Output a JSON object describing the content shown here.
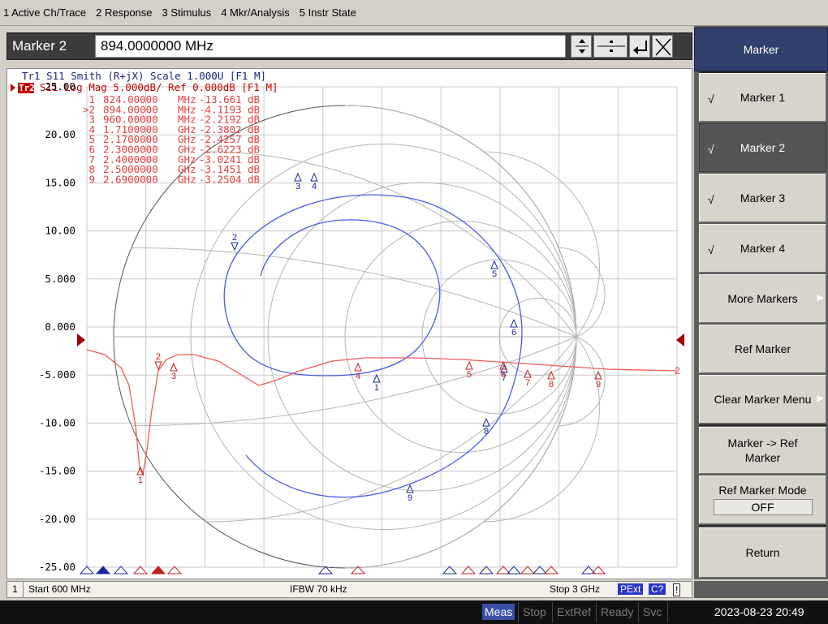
{
  "menu": [
    "1 Active Ch/Trace",
    "2 Response",
    "3 Stimulus",
    "4 Mkr/Analysis",
    "5 Instr State"
  ],
  "entry": {
    "label": "Marker 2",
    "value": "894.0000000 MHz"
  },
  "traces": {
    "tr1": "Tr1 S11 Smith (R+jX) Scale 1.000U [F1 M]",
    "tr2_tag": "Tr2",
    "tr2": "S11 Log Mag 5.000dB/ Ref 0.000dB [F1 M]"
  },
  "yaxis": [
    "25.00",
    "20.00",
    "15.00",
    "10.00",
    "5.000",
    "0.000",
    "-5.000",
    "-10.00",
    "-15.00",
    "-20.00",
    "-25.00"
  ],
  "yaxis_range": [
    -25,
    25
  ],
  "marker_table": [
    {
      "id": "1",
      "freq": "824.00000",
      "unit": "MHz",
      "val": "-13.661",
      "u": "dB"
    },
    {
      "id": ">2",
      "freq": "894.00000",
      "unit": "MHz",
      "val": "-4.1193",
      "u": "dB"
    },
    {
      "id": "3",
      "freq": "960.00000",
      "unit": "MHz",
      "val": "-2.2192",
      "u": "dB"
    },
    {
      "id": "4",
      "freq": "1.7100000",
      "unit": "GHz",
      "val": "-2.3802",
      "u": "dB"
    },
    {
      "id": "5",
      "freq": "2.1700000",
      "unit": "GHz",
      "val": "-2.4257",
      "u": "dB"
    },
    {
      "id": "6",
      "freq": "2.3000000",
      "unit": "GHz",
      "val": "-2.6223",
      "u": "dB"
    },
    {
      "id": "7",
      "freq": "2.4000000",
      "unit": "GHz",
      "val": "-3.0241",
      "u": "dB"
    },
    {
      "id": "8",
      "freq": "2.5000000",
      "unit": "GHz",
      "val": "-3.1451",
      "u": "dB"
    },
    {
      "id": "9",
      "freq": "2.6900000",
      "unit": "GHz",
      "val": "-3.2504",
      "u": "dB"
    }
  ],
  "trace2_end_label": "2",
  "softkeys": {
    "title": "Marker",
    "items": [
      {
        "label": "Marker 1",
        "checked": "√"
      },
      {
        "label": "Marker 2",
        "checked": "√"
      },
      {
        "label": "Marker 3",
        "checked": "√"
      },
      {
        "label": "Marker 4",
        "checked": "√"
      },
      {
        "label": "More Markers"
      },
      {
        "label": "Ref Marker"
      },
      {
        "label": "Clear Marker Menu"
      },
      {
        "label": "Marker -> Ref Marker"
      },
      {
        "label": "Ref Marker Mode",
        "value": "OFF"
      },
      {
        "label": "Return"
      }
    ]
  },
  "channel_status": {
    "channel": "1",
    "start": "Start 600 MHz",
    "ifbw": "IFBW 70 kHz",
    "stop": "Stop 3 GHz",
    "pext": "PExt",
    "cal": "C?",
    "flag": "!"
  },
  "instrument_status": {
    "meas": "Meas",
    "stop": "Stop",
    "extref": "ExtRef",
    "ready": "Ready",
    "svc": "Svc",
    "datetime": "2023-08-23 20:49"
  },
  "colors": {
    "smith_trace": "#4a5be6",
    "logmag_trace": "#f05a5a",
    "panel_title": "#32406e"
  }
}
